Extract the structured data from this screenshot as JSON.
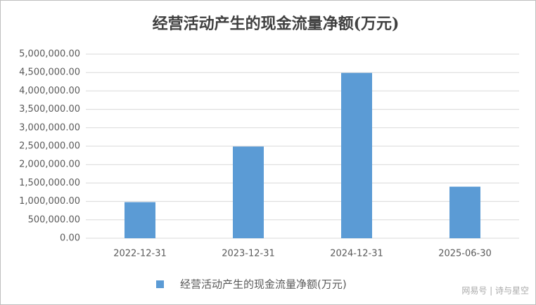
{
  "chart_data": {
    "type": "bar",
    "title": "经营活动产生的现金流量净额(万元)",
    "categories": [
      "2022-12-31",
      "2023-12-31",
      "2024-12-31",
      "2025-06-30"
    ],
    "series": [
      {
        "name": "经营活动产生的现金流量净额(万元)",
        "color": "#5b9bd5",
        "values": [
          980000,
          2490000,
          4490000,
          1400000
        ]
      }
    ],
    "ylim": [
      0,
      5000000
    ],
    "yticks": [
      {
        "value": 0,
        "label": "0.00"
      },
      {
        "value": 500000,
        "label": "500,000.00"
      },
      {
        "value": 1000000,
        "label": "1,000,000.00"
      },
      {
        "value": 1500000,
        "label": "1,500,000.00"
      },
      {
        "value": 2000000,
        "label": "2,000,000.00"
      },
      {
        "value": 2500000,
        "label": "2,500,000.00"
      },
      {
        "value": 3000000,
        "label": "3,000,000.00"
      },
      {
        "value": 3500000,
        "label": "3,500,000.00"
      },
      {
        "value": 4000000,
        "label": "4,000,000.00"
      },
      {
        "value": 4500000,
        "label": "4,500,000.00"
      },
      {
        "value": 5000000,
        "label": "5,000,000.00"
      }
    ],
    "grid": true,
    "legend": "bottom",
    "watermark": "网易号 | 诗与星空"
  }
}
